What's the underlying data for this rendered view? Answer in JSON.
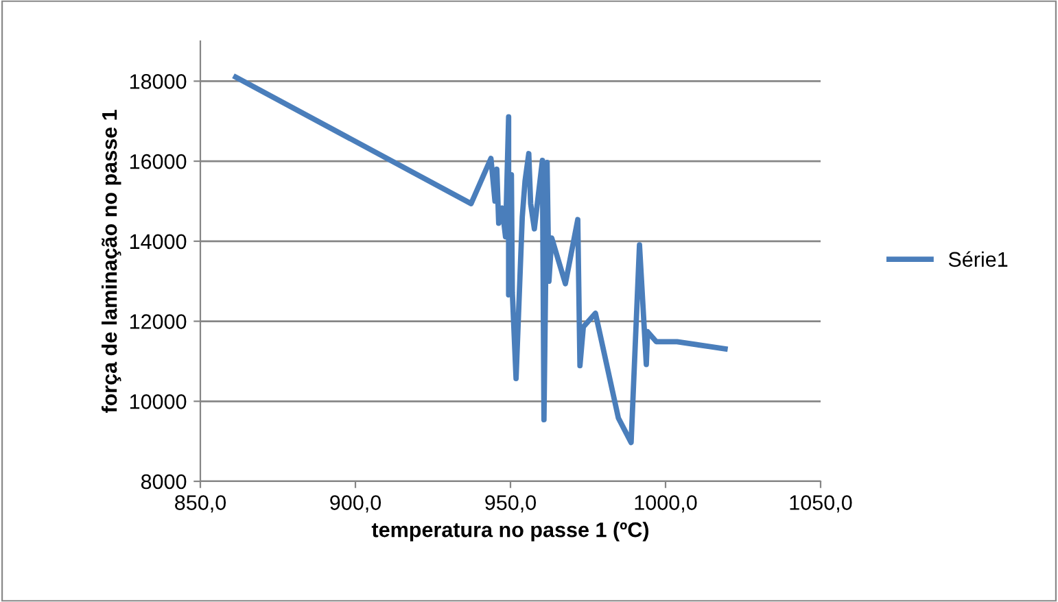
{
  "chart_data": {
    "type": "line",
    "xlabel": "temperatura no passe 1 (ºC)",
    "ylabel": "força de laminação no passe 1",
    "xlim": [
      850,
      1050
    ],
    "xticks": [
      {
        "value": 850,
        "label": "850,0"
      },
      {
        "value": 900,
        "label": "900,0"
      },
      {
        "value": 950,
        "label": "950,0"
      },
      {
        "value": 1000,
        "label": "1000,0"
      },
      {
        "value": 1050,
        "label": "1050,0"
      }
    ],
    "ylim": [
      8000,
      19000
    ],
    "yticks": [
      8000,
      10000,
      12000,
      14000,
      16000,
      18000
    ],
    "grid": "y",
    "legend": "right",
    "marker": "none",
    "line_style": "solid",
    "series": [
      {
        "name": "Série1",
        "color": "#4a7ebb",
        "x": [
          861.4,
          937.3,
          943.7,
          945.0,
          945.6,
          946.2,
          947.3,
          948.4,
          949.4,
          949.4,
          950.3,
          950.6,
          951.8,
          953.8,
          954.7,
          955.9,
          956.5,
          957.7,
          960.3,
          960.8,
          961.8,
          962.4,
          963.3,
          967.7,
          971.7,
          972.4,
          973.5,
          977.4,
          984.8,
          988.9,
          991.6,
          993.8,
          994.2,
          997.0,
          1003.7,
          1019.2
        ],
        "values": [
          18100,
          14940,
          16070,
          15000,
          15800,
          14450,
          14830,
          14110,
          17110,
          12660,
          15660,
          12720,
          10570,
          14600,
          15510,
          16190,
          14940,
          14310,
          16020,
          9540,
          15970,
          13000,
          14080,
          12940,
          14540,
          10890,
          11860,
          12200,
          9580,
          8970,
          13910,
          10920,
          11740,
          11490,
          11490,
          11310
        ]
      }
    ]
  }
}
